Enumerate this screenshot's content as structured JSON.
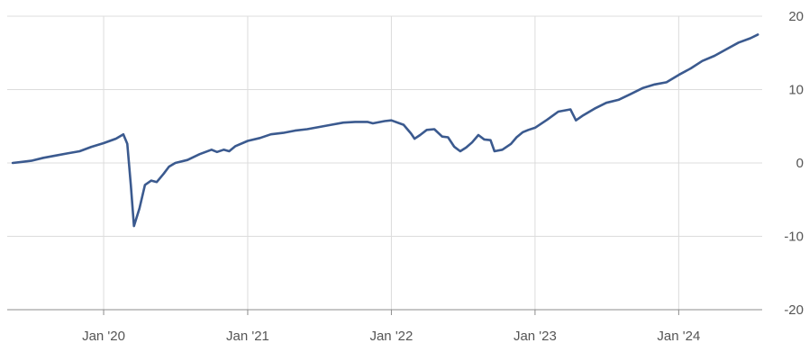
{
  "chart_data": {
    "type": "line",
    "title": "",
    "xlabel": "",
    "ylabel": "",
    "x_ticks": [
      {
        "date": "2020-01-01",
        "label": "Jan '20"
      },
      {
        "date": "2021-01-01",
        "label": "Jan '21"
      },
      {
        "date": "2022-01-01",
        "label": "Jan '22"
      },
      {
        "date": "2023-01-01",
        "label": "Jan '23"
      },
      {
        "date": "2024-01-01",
        "label": "Jan '24"
      }
    ],
    "y_ticks": [
      20,
      10,
      0,
      -10,
      -20
    ],
    "ylim": [
      -20,
      20
    ],
    "xlim": [
      "2019-05-01",
      "2024-07-31"
    ],
    "grid": true,
    "line_color": "#3b5a8f",
    "series": [
      {
        "points": [
          [
            "2019-05-15",
            0.0
          ],
          [
            "2019-06-01",
            0.1
          ],
          [
            "2019-07-01",
            0.3
          ],
          [
            "2019-08-01",
            0.7
          ],
          [
            "2019-09-01",
            1.0
          ],
          [
            "2019-10-01",
            1.3
          ],
          [
            "2019-11-01",
            1.6
          ],
          [
            "2019-12-01",
            2.2
          ],
          [
            "2020-01-01",
            2.7
          ],
          [
            "2020-02-01",
            3.3
          ],
          [
            "2020-02-20",
            3.9
          ],
          [
            "2020-03-01",
            2.6
          ],
          [
            "2020-03-10",
            -3.0
          ],
          [
            "2020-03-18",
            -8.6
          ],
          [
            "2020-04-01",
            -6.2
          ],
          [
            "2020-04-15",
            -3.0
          ],
          [
            "2020-05-01",
            -2.4
          ],
          [
            "2020-05-15",
            -2.6
          ],
          [
            "2020-06-01",
            -1.5
          ],
          [
            "2020-06-15",
            -0.5
          ],
          [
            "2020-07-01",
            0.0
          ],
          [
            "2020-08-01",
            0.4
          ],
          [
            "2020-09-01",
            1.2
          ],
          [
            "2020-10-01",
            1.8
          ],
          [
            "2020-10-15",
            1.5
          ],
          [
            "2020-11-01",
            1.8
          ],
          [
            "2020-11-15",
            1.6
          ],
          [
            "2020-12-01",
            2.3
          ],
          [
            "2021-01-01",
            3.0
          ],
          [
            "2021-02-01",
            3.4
          ],
          [
            "2021-03-01",
            3.9
          ],
          [
            "2021-04-01",
            4.1
          ],
          [
            "2021-05-01",
            4.4
          ],
          [
            "2021-06-01",
            4.6
          ],
          [
            "2021-07-01",
            4.9
          ],
          [
            "2021-08-01",
            5.2
          ],
          [
            "2021-09-01",
            5.5
          ],
          [
            "2021-10-01",
            5.6
          ],
          [
            "2021-11-01",
            5.6
          ],
          [
            "2021-11-15",
            5.4
          ],
          [
            "2021-12-15",
            5.7
          ],
          [
            "2022-01-01",
            5.8
          ],
          [
            "2022-02-01",
            5.2
          ],
          [
            "2022-02-20",
            4.0
          ],
          [
            "2022-03-01",
            3.3
          ],
          [
            "2022-03-15",
            3.8
          ],
          [
            "2022-04-01",
            4.5
          ],
          [
            "2022-04-20",
            4.6
          ],
          [
            "2022-05-10",
            3.6
          ],
          [
            "2022-05-25",
            3.5
          ],
          [
            "2022-06-10",
            2.2
          ],
          [
            "2022-06-25",
            1.6
          ],
          [
            "2022-07-10",
            2.1
          ],
          [
            "2022-07-25",
            2.8
          ],
          [
            "2022-08-10",
            3.8
          ],
          [
            "2022-08-25",
            3.2
          ],
          [
            "2022-09-10",
            3.1
          ],
          [
            "2022-09-20",
            1.6
          ],
          [
            "2022-10-10",
            1.8
          ],
          [
            "2022-11-01",
            2.6
          ],
          [
            "2022-11-15",
            3.5
          ],
          [
            "2022-12-01",
            4.2
          ],
          [
            "2022-12-15",
            4.5
          ],
          [
            "2023-01-01",
            4.8
          ],
          [
            "2023-02-01",
            5.9
          ],
          [
            "2023-03-01",
            7.0
          ],
          [
            "2023-04-01",
            7.3
          ],
          [
            "2023-04-15",
            5.8
          ],
          [
            "2023-05-01",
            6.4
          ],
          [
            "2023-06-01",
            7.4
          ],
          [
            "2023-07-01",
            8.2
          ],
          [
            "2023-08-01",
            8.6
          ],
          [
            "2023-09-01",
            9.4
          ],
          [
            "2023-10-01",
            10.2
          ],
          [
            "2023-11-01",
            10.7
          ],
          [
            "2023-12-01",
            11.0
          ],
          [
            "2024-01-01",
            12.0
          ],
          [
            "2024-02-01",
            12.9
          ],
          [
            "2024-03-01",
            13.9
          ],
          [
            "2024-04-01",
            14.6
          ],
          [
            "2024-05-01",
            15.5
          ],
          [
            "2024-06-01",
            16.4
          ],
          [
            "2024-07-01",
            17.0
          ],
          [
            "2024-07-20",
            17.5
          ]
        ]
      }
    ]
  }
}
